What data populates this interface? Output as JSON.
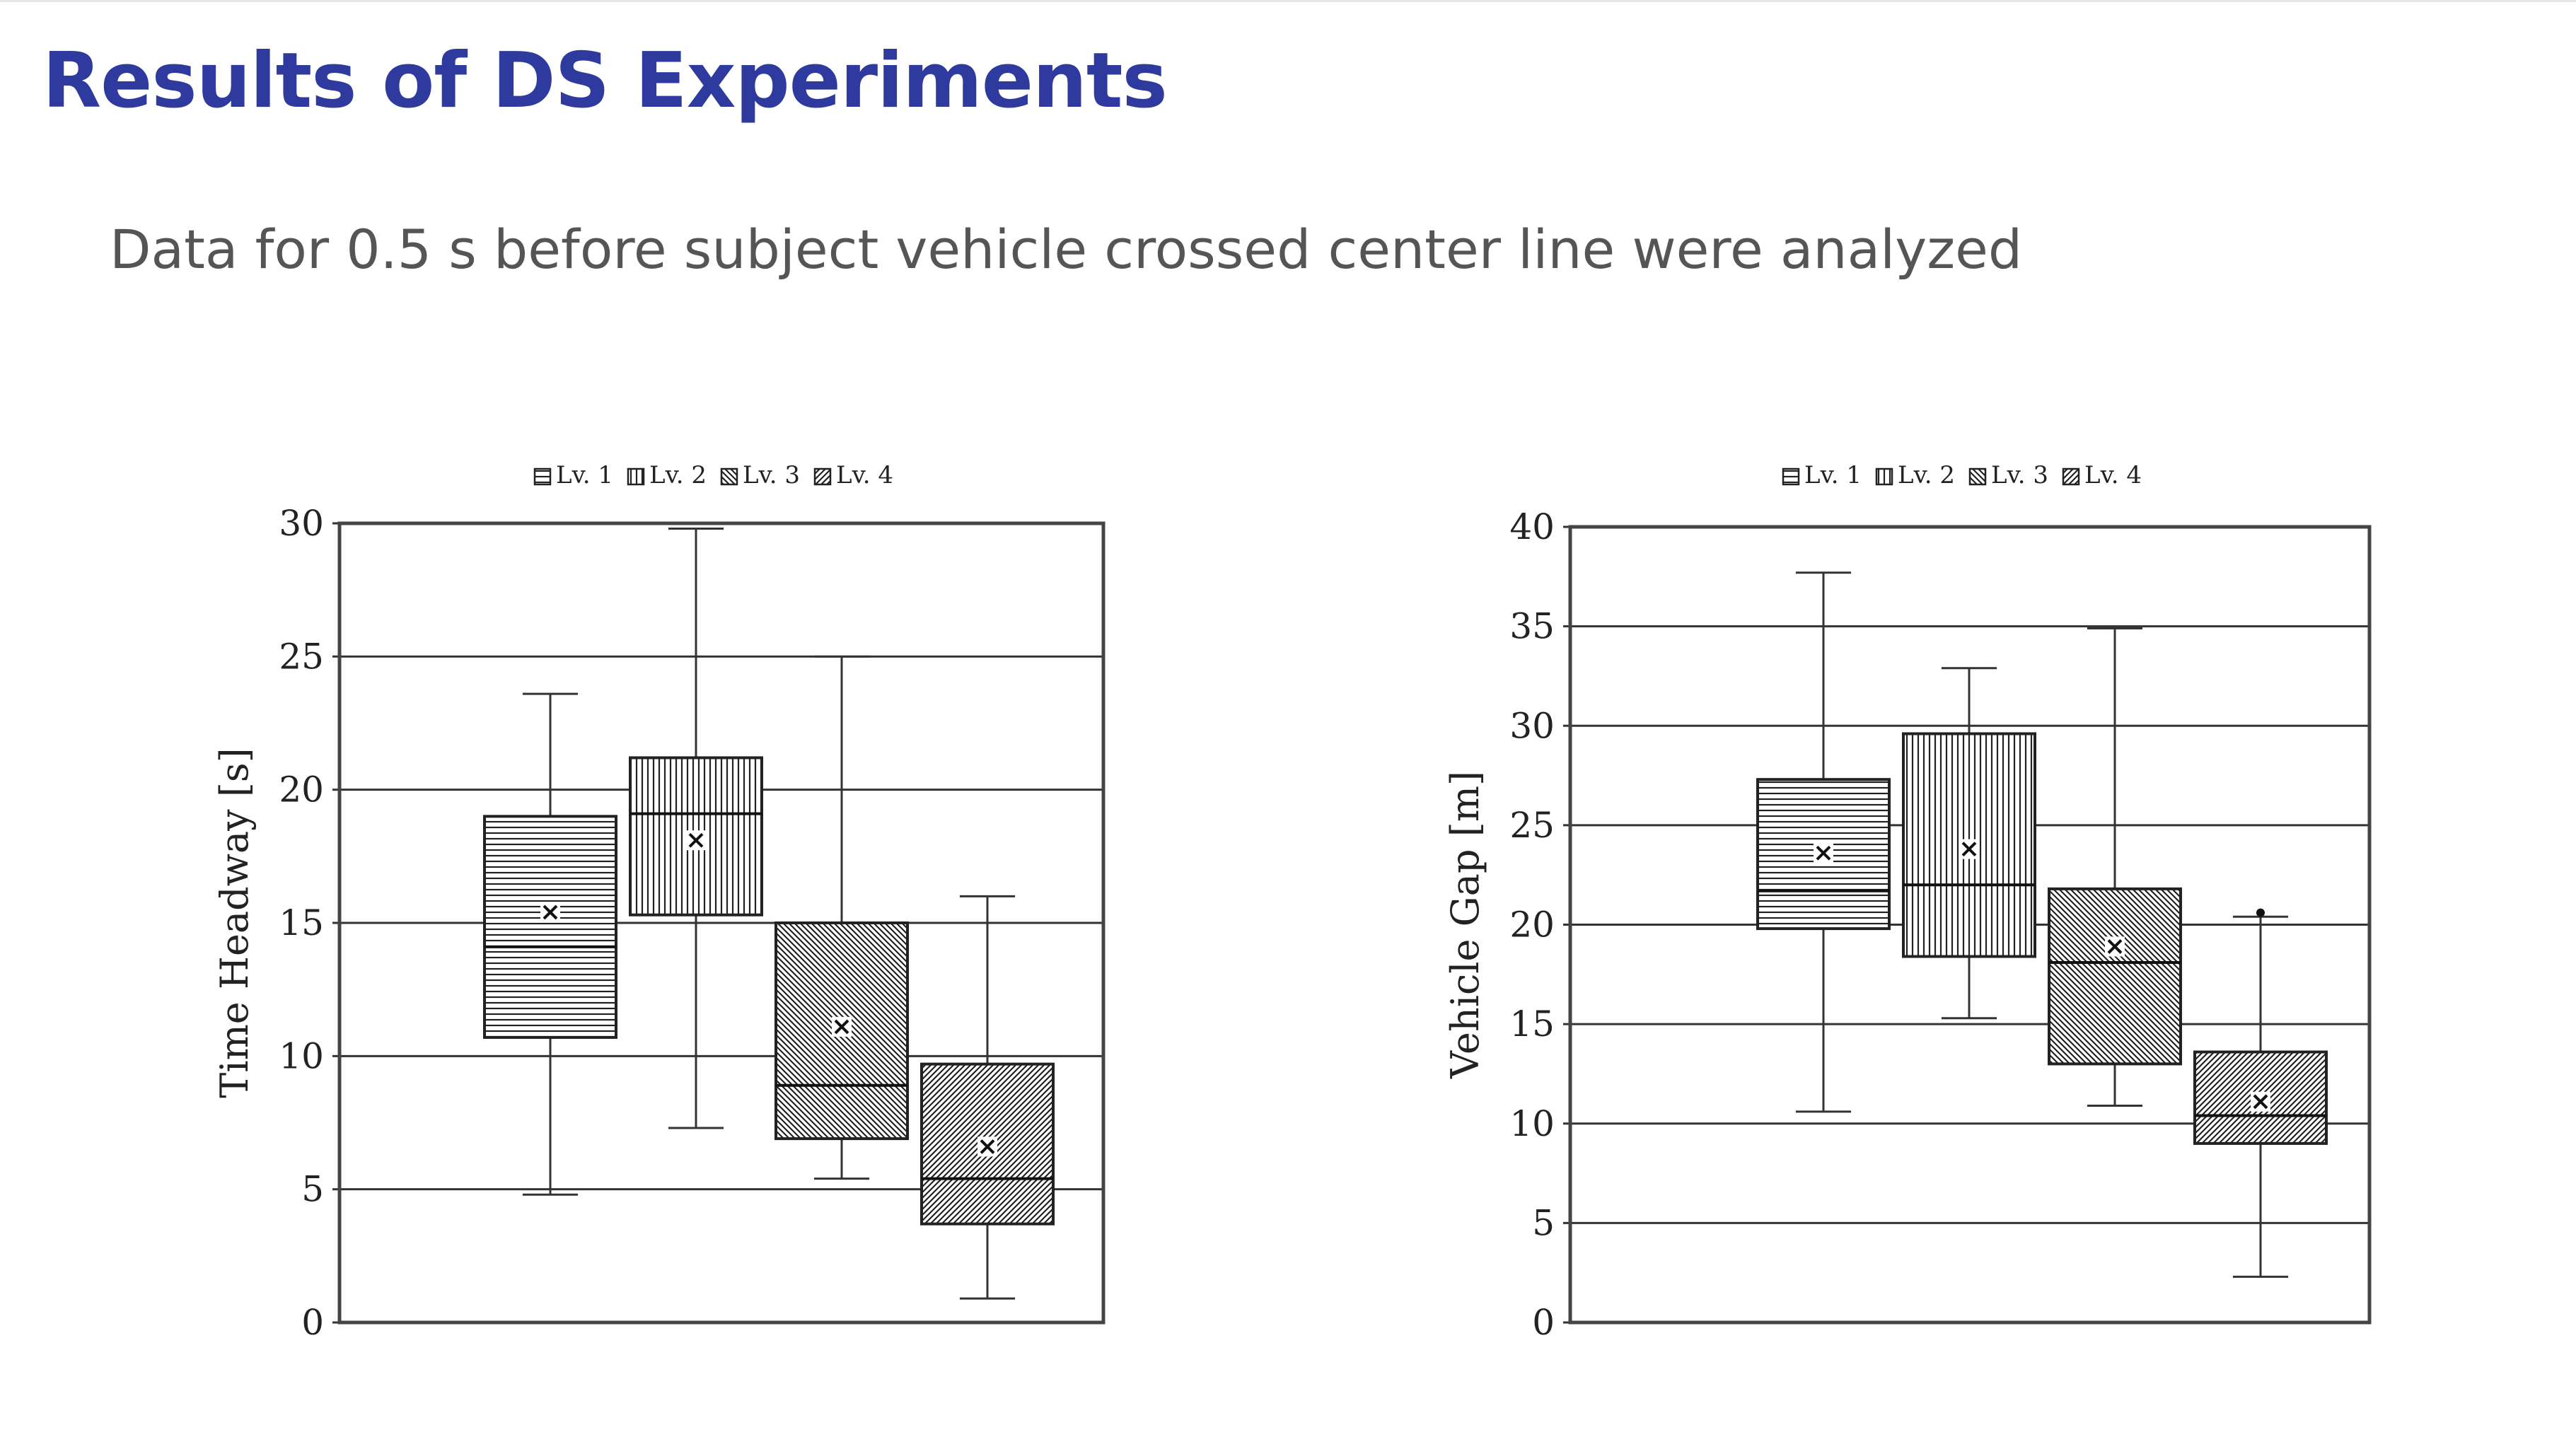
{
  "slide": {
    "title": "Results of DS Experiments",
    "subtitle": "Data for 0.5 s before subject vehicle crossed center line were analyzed"
  },
  "chart_data": [
    {
      "type": "boxplot",
      "title": "",
      "xlabel": "",
      "ylabel": "Time Headway [s]",
      "ylim": [
        0,
        30
      ],
      "yticks": [
        0,
        5,
        10,
        15,
        20,
        25,
        30
      ],
      "grid": "horizontal",
      "legend": {
        "position": "top-center",
        "entries": [
          "Lv. 1",
          "Lv. 2",
          "Lv. 3",
          "Lv. 4"
        ]
      },
      "series": [
        {
          "name": "Lv. 1",
          "whisker_low": 4.8,
          "q1": 10.7,
          "median": 14.1,
          "q3": 19.0,
          "whisker_high": 23.6,
          "mean": 15.4,
          "outliers": [],
          "pattern": "horizontal"
        },
        {
          "name": "Lv. 2",
          "whisker_low": 7.3,
          "q1": 15.3,
          "median": 19.1,
          "q3": 21.2,
          "whisker_high": 29.8,
          "mean": 18.1,
          "outliers": [],
          "pattern": "vertical"
        },
        {
          "name": "Lv. 3",
          "whisker_low": 5.4,
          "q1": 6.9,
          "median": 8.9,
          "q3": 15.0,
          "whisker_high": 25.0,
          "mean": 11.1,
          "outliers": [],
          "pattern": "diagonal-down"
        },
        {
          "name": "Lv. 4",
          "whisker_low": 0.9,
          "q1": 3.7,
          "median": 5.4,
          "q3": 9.7,
          "whisker_high": 16.0,
          "mean": 6.6,
          "outliers": [],
          "pattern": "diagonal-up"
        }
      ]
    },
    {
      "type": "boxplot",
      "title": "",
      "xlabel": "",
      "ylabel": "Vehicle Gap [m]",
      "ylim": [
        0,
        40
      ],
      "yticks": [
        0,
        5,
        10,
        15,
        20,
        25,
        30,
        35,
        40
      ],
      "grid": "horizontal",
      "legend": {
        "position": "top-center",
        "entries": [
          "Lv. 1",
          "Lv. 2",
          "Lv. 3",
          "Lv. 4"
        ]
      },
      "series": [
        {
          "name": "Lv. 1",
          "whisker_low": 10.6,
          "q1": 19.8,
          "median": 21.7,
          "q3": 27.3,
          "whisker_high": 37.7,
          "mean": 23.6,
          "outliers": [],
          "pattern": "horizontal"
        },
        {
          "name": "Lv. 2",
          "whisker_low": 15.3,
          "q1": 18.4,
          "median": 22.0,
          "q3": 29.6,
          "whisker_high": 32.9,
          "mean": 23.8,
          "outliers": [],
          "pattern": "vertical"
        },
        {
          "name": "Lv. 3",
          "whisker_low": 10.9,
          "q1": 13.0,
          "median": 18.1,
          "q3": 21.8,
          "whisker_high": 34.9,
          "mean": 18.9,
          "outliers": [],
          "pattern": "diagonal-down"
        },
        {
          "name": "Lv. 4",
          "whisker_low": 2.3,
          "q1": 9.0,
          "median": 10.4,
          "q3": 13.6,
          "whisker_high": 20.4,
          "mean": 11.1,
          "outliers": [
            20.6
          ],
          "pattern": "diagonal-up"
        }
      ]
    }
  ]
}
